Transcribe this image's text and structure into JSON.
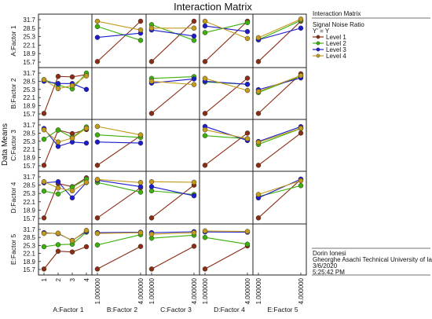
{
  "chart_data": {
    "type": "line",
    "title": "Interaction Matrix",
    "ylabel": "Data Means",
    "y_ticks": [
      "31.7",
      "28.5",
      "25.3",
      "22.1",
      "18.9",
      "15.7"
    ],
    "ylim": [
      15.7,
      31.7
    ],
    "factors": [
      "A:Factor 1",
      "B:Factor 2",
      "C:Factor 3",
      "D:Factor 4",
      "E:Factor 5"
    ],
    "x_tick_labels": [
      [
        "1",
        "2",
        "3",
        "4"
      ],
      [
        "1.000000",
        "4.000000"
      ],
      [
        "1.000000",
        "4.000000"
      ],
      [
        "1.000000",
        "4.000000"
      ],
      [
        "1.000000",
        "4.000000"
      ]
    ],
    "legend": {
      "title": "Interaction Matrix",
      "subtitle": "Signal Noise Ratio",
      "expression": "Y' = Y",
      "items": [
        {
          "label": "Level 1",
          "color": "#8b2d14"
        },
        {
          "label": "Level 2",
          "color": "#3cb00a"
        },
        {
          "label": "Level 3",
          "color": "#1c1ccc"
        },
        {
          "label": "Level 4",
          "color": "#c49a1a"
        }
      ]
    },
    "footer": {
      "author": "Dorin Ionesi",
      "org": "Gheorghe Asachi Technical University of Ia",
      "date": "3/6/2020",
      "time": "5:25:42 PM"
    },
    "series_colors": [
      "#8b2d14",
      "#3cb00a",
      "#1c1ccc",
      "#c49a1a"
    ],
    "cells": [
      {
        "row": 0,
        "col": 1,
        "y": [
          [
            15.9,
            31.1
          ],
          [
            29.1,
            23.9
          ],
          [
            25.0,
            26.6
          ],
          [
            31.1,
            27.8
          ]
        ]
      },
      {
        "row": 0,
        "col": 2,
        "y": [
          [
            15.9,
            31.1
          ],
          [
            29.8,
            23.9
          ],
          [
            27.8,
            25.5
          ],
          [
            28.5,
            28.5
          ]
        ]
      },
      {
        "row": 0,
        "col": 3,
        "y": [
          [
            15.9,
            31.1
          ],
          [
            26.8,
            30.6
          ],
          [
            29.3,
            27.2
          ],
          [
            31.1,
            24.6
          ]
        ]
      },
      {
        "row": 0,
        "col": 4,
        "y": [
          [
            15.9,
            31.1
          ],
          [
            24.1,
            31.4
          ],
          [
            24.1,
            28.5
          ],
          [
            24.9,
            31.9
          ]
        ]
      },
      {
        "row": 1,
        "col": 0,
        "y": [
          [
            15.9,
            30.4,
            30.2,
            31.1
          ],
          [
            29.1,
            27.0,
            25.5,
            31.7
          ],
          [
            28.5,
            27.6,
            27.6,
            25.3
          ],
          [
            29.1,
            25.6,
            26.8,
            30.6
          ]
        ]
      },
      {
        "row": 1,
        "col": 2,
        "y": [
          [
            15.9,
            29.7
          ],
          [
            29.6,
            30.3
          ],
          [
            27.8,
            29.4
          ],
          [
            28.5,
            27.2
          ]
        ]
      },
      {
        "row": 1,
        "col": 3,
        "y": [
          [
            15.9,
            29.7
          ],
          [
            28.2,
            27.3
          ],
          [
            28.5,
            27.3
          ],
          [
            29.6,
            24.9
          ]
        ]
      },
      {
        "row": 1,
        "col": 4,
        "y": [
          [
            15.9,
            31.4
          ],
          [
            24.1,
            30.5
          ],
          [
            25.2,
            29.8
          ],
          [
            24.5,
            30.7
          ]
        ]
      },
      {
        "row": 2,
        "col": 0,
        "y": [
          [
            15.9,
            29.7,
            28.3,
            29.9
          ],
          [
            26.1,
            29.7,
            26.8,
            30.9
          ],
          [
            30.3,
            23.3,
            25.0,
            24.6
          ],
          [
            29.8,
            25.0,
            26.5,
            30.4
          ]
        ]
      },
      {
        "row": 2,
        "col": 1,
        "y": [
          [
            15.9,
            27.5
          ],
          [
            27.8,
            26.8
          ],
          [
            25.0,
            24.6
          ],
          [
            31.1,
            27.8
          ]
        ]
      },
      {
        "row": 2,
        "col": 3,
        "y": [
          [
            15.9,
            28.5
          ],
          [
            27.5,
            26.3
          ],
          [
            31.1,
            25.6
          ],
          [
            29.8,
            26.3
          ]
        ]
      },
      {
        "row": 2,
        "col": 4,
        "y": [
          [
            15.9,
            28.5
          ],
          [
            24.1,
            30.3
          ],
          [
            25.2,
            31.0
          ],
          [
            24.9,
            30.4
          ]
        ]
      },
      {
        "row": 3,
        "col": 0,
        "y": [
          [
            15.9,
            29.1,
            27.9,
            31.3
          ],
          [
            26.2,
            25.1,
            27.7,
            30.8
          ],
          [
            29.4,
            29.8,
            23.6,
            29.5
          ],
          [
            29.8,
            27.4,
            26.3,
            29.6
          ]
        ]
      },
      {
        "row": 3,
        "col": 1,
        "y": [
          [
            15.9,
            27.5
          ],
          [
            29.5,
            25.8
          ],
          [
            30.4,
            27.9
          ],
          [
            30.7,
            29.5
          ]
        ]
      },
      {
        "row": 3,
        "col": 2,
        "y": [
          [
            15.9,
            28.5
          ],
          [
            26.3,
            24.9
          ],
          [
            27.9,
            24.4
          ],
          [
            29.8,
            29.6
          ]
        ]
      },
      {
        "row": 3,
        "col": 4,
        "y": [
          [
            15.9,
            30.7
          ],
          [
            24.1,
            28.3
          ],
          [
            23.6,
            30.8
          ],
          [
            24.9,
            30.2
          ]
        ]
      },
      {
        "row": 4,
        "col": 0,
        "y": [
          [
            15.9,
            23.0,
            22.7,
            24.8
          ],
          [
            24.8,
            25.6,
            25.8,
            30.6
          ],
          [
            30.4,
            30.0,
            27.3,
            30.9
          ],
          [
            30.1,
            30.2,
            27.2,
            31.3
          ]
        ]
      },
      {
        "row": 4,
        "col": 1,
        "y": [
          [
            15.9,
            24.9
          ],
          [
            25.5,
            29.6
          ],
          [
            30.4,
            30.6
          ],
          [
            30.1,
            30.4
          ]
        ]
      },
      {
        "row": 4,
        "col": 2,
        "y": [
          [
            15.9,
            25.0
          ],
          [
            28.2,
            29.4
          ],
          [
            30.4,
            30.8
          ],
          [
            29.8,
            30.4
          ]
        ]
      },
      {
        "row": 4,
        "col": 3,
        "y": [
          [
            15.9,
            25.1
          ],
          [
            28.5,
            25.8
          ],
          [
            30.7,
            30.6
          ],
          [
            31.1,
            30.9
          ]
        ]
      }
    ]
  }
}
